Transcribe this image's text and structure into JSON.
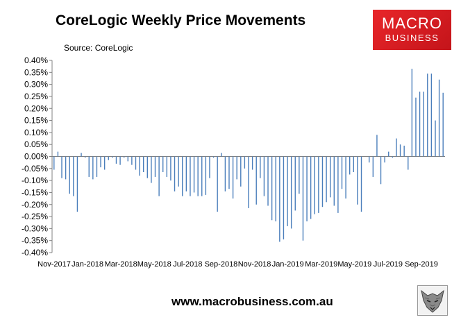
{
  "header": {
    "title": "CoreLogic Weekly Price Movements",
    "source": "Source: CoreLogic"
  },
  "logo": {
    "line1": "MACRO",
    "line2": "BUSINESS"
  },
  "footer": {
    "url": "www.macrobusiness.com.au"
  },
  "icons": {
    "footer_emblem": "wolf-emblem-icon"
  },
  "colors": {
    "bar": "#4a7ebb",
    "logo_bg": "#d81e25"
  },
  "chart_data": {
    "type": "bar",
    "title": "CoreLogic Weekly Price Movements",
    "xlabel": "",
    "ylabel": "",
    "ylim": [
      -0.4,
      0.4
    ],
    "y_ticks": [
      "0.40%",
      "0.35%",
      "0.30%",
      "0.25%",
      "0.20%",
      "0.15%",
      "0.10%",
      "0.05%",
      "0.00%",
      "-0.05%",
      "-0.10%",
      "-0.15%",
      "-0.20%",
      "-0.25%",
      "-0.30%",
      "-0.35%",
      "-0.40%"
    ],
    "x_ticks": [
      "Nov-2017",
      "Jan-2018",
      "Mar-2018",
      "May-2018",
      "Jul-2018",
      "Sep-2018",
      "Nov-2018",
      "Jan-2019",
      "Mar-2019",
      "May-2019",
      "Jul-2019",
      "Sep-2019"
    ],
    "grid": false,
    "legend": "none",
    "unit": "%",
    "values": [
      -0.055,
      0.02,
      -0.09,
      -0.095,
      -0.155,
      -0.165,
      -0.23,
      0.015,
      -0.005,
      -0.085,
      -0.095,
      -0.085,
      -0.045,
      -0.055,
      -0.015,
      -0.005,
      -0.03,
      -0.035,
      -0.005,
      -0.02,
      -0.035,
      -0.055,
      -0.08,
      -0.065,
      -0.09,
      -0.11,
      -0.085,
      -0.165,
      -0.065,
      -0.085,
      -0.1,
      -0.145,
      -0.125,
      -0.165,
      -0.145,
      -0.165,
      -0.15,
      -0.165,
      -0.165,
      -0.16,
      -0.09,
      -0.005,
      -0.23,
      0.015,
      -0.145,
      -0.135,
      -0.175,
      -0.095,
      -0.125,
      -0.05,
      -0.215,
      -0.055,
      -0.2,
      -0.09,
      -0.165,
      -0.205,
      -0.265,
      -0.27,
      -0.355,
      -0.345,
      -0.29,
      -0.3,
      -0.225,
      -0.155,
      -0.35,
      -0.27,
      -0.26,
      -0.24,
      -0.235,
      -0.21,
      -0.19,
      -0.17,
      -0.205,
      -0.235,
      -0.135,
      -0.175,
      -0.075,
      -0.065,
      -0.2,
      -0.23,
      0.0,
      -0.025,
      -0.085,
      0.09,
      -0.115,
      -0.025,
      0.02,
      -0.005,
      0.075,
      0.05,
      0.045,
      -0.055,
      0.365,
      0.245,
      0.27,
      0.27,
      0.345,
      0.345,
      0.15,
      0.32,
      0.265
    ]
  }
}
